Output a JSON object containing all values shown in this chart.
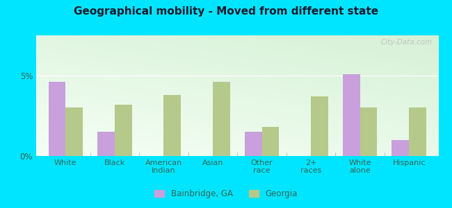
{
  "title": "Geographical mobility - Moved from different state",
  "categories": [
    "White",
    "Black",
    "American\nIndian",
    "Asian",
    "Other\nrace",
    "2+\nraces",
    "White\nalone",
    "Hispanic"
  ],
  "bainbridge_values": [
    4.6,
    1.5,
    0.0,
    0.0,
    1.5,
    0.0,
    5.1,
    1.0
  ],
  "georgia_values": [
    3.0,
    3.2,
    3.8,
    4.6,
    1.8,
    3.7,
    3.0,
    3.0
  ],
  "bainbridge_color": "#c9a0dc",
  "georgia_color": "#b5c98a",
  "bg_outer": "#00e5ff",
  "title_fontsize": 11,
  "title_color": "#1a1a2e",
  "ylim": [
    0,
    7.5
  ],
  "yticks": [
    0,
    5
  ],
  "ytick_labels": [
    "0%",
    "5%"
  ],
  "bar_width": 0.35,
  "legend_labels": [
    "Bainbridge, GA",
    "Georgia"
  ],
  "watermark": "City-Data.com"
}
